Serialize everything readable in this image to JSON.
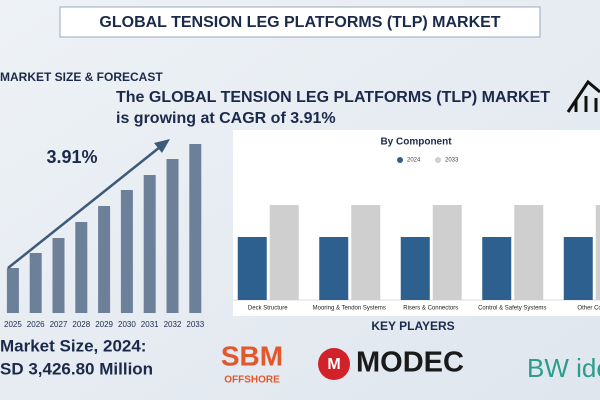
{
  "title": "GLOBAL TENSION LEG PLATFORMS (TLP) MARKET",
  "section_title": "MARKET SIZE & FORECAST",
  "headline": [
    "The GLOBAL TENSION LEG PLATFORMS (TLP) MARKET",
    "is growing at CAGR of 3.91%"
  ],
  "market_size": {
    "label": "Market Size, 2024:",
    "value": "SD 3,426.80 Million"
  },
  "key_players": {
    "title": "KEY PLAYERS",
    "logos": [
      [
        "SBM",
        "OFFSHORE"
      ],
      [
        "MODEC"
      ],
      [
        "BW ide"
      ]
    ]
  },
  "chart_data": [
    {
      "type": "bar",
      "annotation": "3.91%",
      "color": "#6d8099",
      "categories": [
        "2025",
        "2026",
        "2027",
        "2028",
        "2029",
        "2030",
        "2031",
        "2032",
        "2033"
      ],
      "values": [
        45,
        60,
        75,
        91,
        107,
        123,
        138,
        154,
        169
      ],
      "ylim": [
        0,
        180
      ]
    },
    {
      "type": "grouped-bar",
      "title": "By Component",
      "categories": [
        "Deck Structure",
        "Mooring & Tendon Systems",
        "Risers & Connectors",
        "Control & Safety Systems",
        "Other Comp"
      ],
      "series": [
        {
          "name": "2024",
          "color": "#2d5f8f",
          "values": [
            63,
            63,
            63,
            63,
            63
          ]
        },
        {
          "name": "2033",
          "color": "#cfcfcf",
          "values": [
            95,
            95,
            95,
            95,
            95
          ]
        }
      ],
      "ylim": [
        0,
        110
      ]
    }
  ]
}
